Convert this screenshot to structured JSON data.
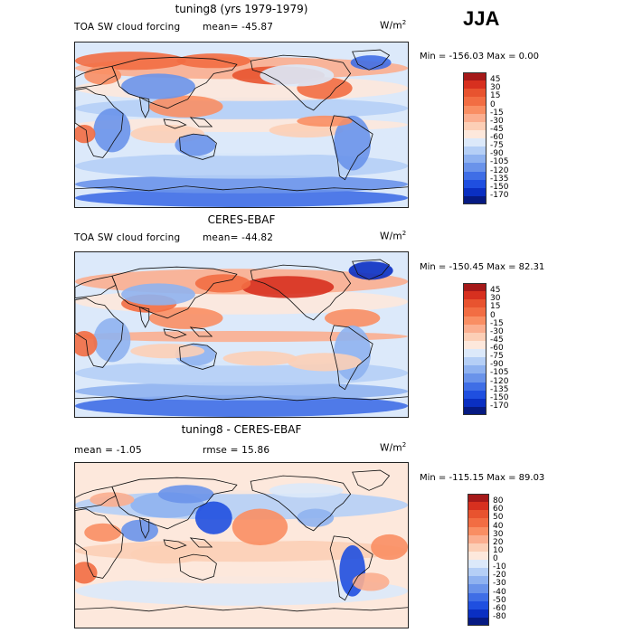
{
  "season": "JJA",
  "panels": [
    {
      "id": "model",
      "title": "tuning8 (yrs 1979-1979)",
      "left_label": "TOA SW cloud forcing",
      "stat_label": "mean= -45.87",
      "units_base": "W/m",
      "units_exp": "2",
      "min_max": "Min = -156.03 Max =   0.00",
      "legend_levels": [
        "45",
        "30",
        "15",
        "0",
        "-15",
        "-30",
        "-45",
        "-60",
        "-75",
        "-90",
        "-105",
        "-120",
        "-135",
        "-150",
        "-170"
      ],
      "legend_colors": [
        "#a51919",
        "#d7301f",
        "#e8532f",
        "#f26d43",
        "#f98e63",
        "#fbae8f",
        "#fccfb6",
        "#fde8dc",
        "#dce9fa",
        "#b5cff6",
        "#8fb2f0",
        "#6a93ea",
        "#3f6ee6",
        "#1f4fe0",
        "#0a2fc2",
        "#061a82"
      ]
    },
    {
      "id": "obs",
      "title": "CERES-EBAF",
      "left_label": "TOA SW cloud forcing",
      "stat_label": "mean= -44.82",
      "units_base": "W/m",
      "units_exp": "2",
      "min_max": "Min = -150.45 Max =  82.31",
      "legend_levels": [
        "45",
        "30",
        "15",
        "0",
        "-15",
        "-30",
        "-45",
        "-60",
        "-75",
        "-90",
        "-105",
        "-120",
        "-135",
        "-150",
        "-170"
      ],
      "legend_colors": [
        "#a51919",
        "#d7301f",
        "#e8532f",
        "#f26d43",
        "#f98e63",
        "#fbae8f",
        "#fccfb6",
        "#fde8dc",
        "#dce9fa",
        "#b5cff6",
        "#8fb2f0",
        "#6a93ea",
        "#3f6ee6",
        "#1f4fe0",
        "#0a2fc2",
        "#061a82"
      ]
    },
    {
      "id": "diff",
      "title": "tuning8 - CERES-EBAF",
      "left_label": "mean =   -1.05",
      "stat_label": "rmse =  15.86",
      "units_base": "W/m",
      "units_exp": "2",
      "min_max": "Min = -115.15 Max =  89.03",
      "legend_levels": [
        "80",
        "60",
        "50",
        "40",
        "30",
        "20",
        "10",
        "0",
        "-10",
        "-20",
        "-30",
        "-40",
        "-50",
        "-60",
        "-80"
      ],
      "legend_colors": [
        "#a51919",
        "#d7301f",
        "#e8532f",
        "#f26d43",
        "#f98e63",
        "#fbae8f",
        "#fccfb6",
        "#fde8dc",
        "#dce9fa",
        "#b5cff6",
        "#8fb2f0",
        "#6a93ea",
        "#3f6ee6",
        "#1f4fe0",
        "#0a2fc2",
        "#061a82"
      ]
    }
  ],
  "chart_data": {
    "type": "heatmap",
    "description_levels_model": [
      -170,
      -150,
      -135,
      -120,
      -105,
      -90,
      -75,
      -60,
      -45,
      -30,
      -15,
      0,
      15,
      30,
      45
    ],
    "description_levels_diff": [
      -80,
      -60,
      -50,
      -40,
      -30,
      -20,
      -10,
      0,
      10,
      20,
      30,
      40,
      50,
      60,
      80
    ],
    "panels": [
      {
        "title": "tuning8 (yrs 1979-1979)",
        "field": "TOA SW cloud forcing",
        "units": "W/m2",
        "mean": -45.87,
        "min": -156.03,
        "max": 0.0
      },
      {
        "title": "CERES-EBAF",
        "field": "TOA SW cloud forcing",
        "units": "W/m2",
        "mean": -44.82,
        "min": -150.45,
        "max": 82.31
      },
      {
        "title": "tuning8 - CERES-EBAF",
        "units": "W/m2",
        "mean": -1.05,
        "rmse": 15.86,
        "min": -115.15,
        "max": 89.03
      }
    ]
  }
}
